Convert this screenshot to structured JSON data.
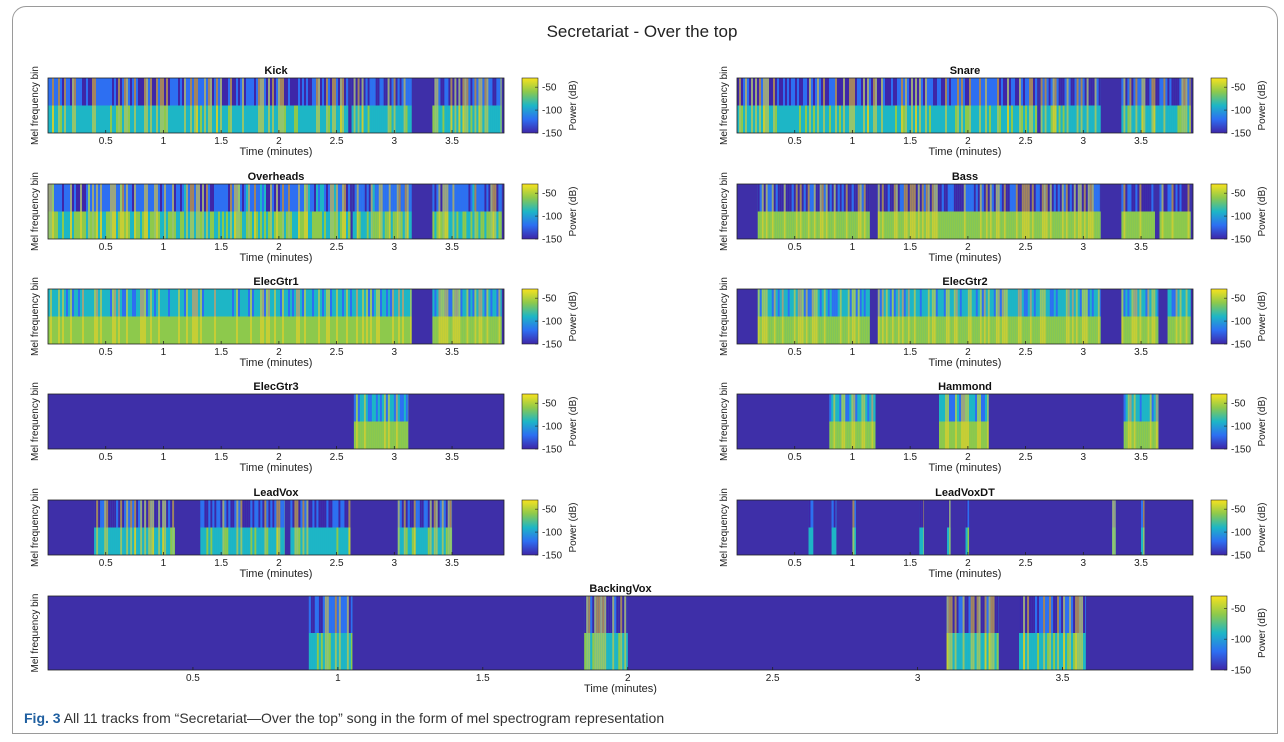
{
  "figure": {
    "title": "Secretariat - Over the top",
    "caption_number": "Fig. 3",
    "caption_text": "All 11 tracks from “Secretariat—Over the top” song in the form of mel spectrogram representation"
  },
  "colors": {
    "silence": "#3e2fa8",
    "mid": "#27a8c9",
    "high": "#f5d223",
    "colormap": [
      "#3e26a8",
      "#2d6ff2",
      "#1db6c6",
      "#8dc94c",
      "#f8e21e"
    ]
  },
  "chart_data": [
    {
      "type": "heatmap",
      "title": "Kick",
      "xlabel": "Time (minutes)",
      "ylabel": "Mel frequency bin",
      "xlim": [
        0,
        3.95
      ],
      "xticks": [
        "0.5",
        "1",
        "1.5",
        "2",
        "2.5",
        "3",
        "3.5"
      ],
      "colorbar": {
        "label": "Power (dB)",
        "range": [
          -150,
          -30
        ],
        "ticks": [
          "-50",
          "-100",
          "-150"
        ]
      },
      "active_segments": [
        [
          0,
          2.6
        ],
        [
          2.63,
          3.15
        ],
        [
          3.33,
          3.93
        ]
      ],
      "intensity": "mid"
    },
    {
      "type": "heatmap",
      "title": "Snare",
      "xlabel": "Time (minutes)",
      "ylabel": "Mel frequency bin",
      "xlim": [
        0,
        3.95
      ],
      "xticks": [
        "0.5",
        "1",
        "1.5",
        "2",
        "2.5",
        "3",
        "3.5"
      ],
      "colorbar": {
        "label": "Power (dB)",
        "range": [
          -150,
          -30
        ],
        "ticks": [
          "-50",
          "-100",
          "-150"
        ]
      },
      "active_segments": [
        [
          0,
          2.6
        ],
        [
          2.63,
          3.15
        ],
        [
          3.33,
          3.93
        ]
      ],
      "intensity": "mid"
    },
    {
      "type": "heatmap",
      "title": "Overheads",
      "xlabel": "Time (minutes)",
      "ylabel": "Mel frequency bin",
      "xlim": [
        0,
        3.95
      ],
      "xticks": [
        "0.5",
        "1",
        "1.5",
        "2",
        "2.5",
        "3",
        "3.5"
      ],
      "colorbar": {
        "label": "Power (dB)",
        "range": [
          -150,
          -30
        ],
        "ticks": [
          "-50",
          "-100",
          "-150"
        ]
      },
      "active_segments": [
        [
          0,
          2.62
        ],
        [
          2.64,
          3.15
        ],
        [
          3.33,
          3.93
        ]
      ],
      "intensity": "mid-high"
    },
    {
      "type": "heatmap",
      "title": "Bass",
      "xlabel": "Time (minutes)",
      "ylabel": "Mel frequency bin",
      "xlim": [
        0,
        3.95
      ],
      "xticks": [
        "0.5",
        "1",
        "1.5",
        "2",
        "2.5",
        "3",
        "3.5"
      ],
      "colorbar": {
        "label": "Power (dB)",
        "range": [
          -150,
          -30
        ],
        "ticks": [
          "-50",
          "-100",
          "-150"
        ]
      },
      "active_segments": [
        [
          0.18,
          1.15
        ],
        [
          1.22,
          3.15
        ],
        [
          3.33,
          3.62
        ],
        [
          3.66,
          3.93
        ]
      ],
      "intensity": "low-heavy"
    },
    {
      "type": "heatmap",
      "title": "ElecGtr1",
      "xlabel": "Time (minutes)",
      "ylabel": "Mel frequency bin",
      "xlim": [
        0,
        3.95
      ],
      "xticks": [
        "0.5",
        "1",
        "1.5",
        "2",
        "2.5",
        "3",
        "3.5"
      ],
      "colorbar": {
        "label": "Power (dB)",
        "range": [
          -150,
          -30
        ],
        "ticks": [
          "-50",
          "-100",
          "-150"
        ]
      },
      "active_segments": [
        [
          0,
          3.15
        ],
        [
          3.33,
          3.93
        ]
      ],
      "intensity": "high"
    },
    {
      "type": "heatmap",
      "title": "ElecGtr2",
      "xlabel": "Time (minutes)",
      "ylabel": "Mel frequency bin",
      "xlim": [
        0,
        3.95
      ],
      "xticks": [
        "0.5",
        "1",
        "1.5",
        "2",
        "2.5",
        "3",
        "3.5"
      ],
      "colorbar": {
        "label": "Power (dB)",
        "range": [
          -150,
          -30
        ],
        "ticks": [
          "-50",
          "-100",
          "-150"
        ]
      },
      "active_segments": [
        [
          0.18,
          1.15
        ],
        [
          1.22,
          3.15
        ],
        [
          3.33,
          3.65
        ],
        [
          3.73,
          3.93
        ]
      ],
      "intensity": "high"
    },
    {
      "type": "heatmap",
      "title": "ElecGtr3",
      "xlabel": "Time (minutes)",
      "ylabel": "Mel frequency bin",
      "xlim": [
        0,
        3.95
      ],
      "xticks": [
        "0.5",
        "1",
        "1.5",
        "2",
        "2.5",
        "3",
        "3.5"
      ],
      "colorbar": {
        "label": "Power (dB)",
        "range": [
          -150,
          -30
        ],
        "ticks": [
          "-50",
          "-100",
          "-150"
        ]
      },
      "active_segments": [
        [
          2.65,
          3.12
        ]
      ],
      "intensity": "high"
    },
    {
      "type": "heatmap",
      "title": "Hammond",
      "xlabel": "Time (minutes)",
      "ylabel": "Mel frequency bin",
      "xlim": [
        0,
        3.95
      ],
      "xticks": [
        "0.5",
        "1",
        "1.5",
        "2",
        "2.5",
        "3",
        "3.5"
      ],
      "colorbar": {
        "label": "Power (dB)",
        "range": [
          -150,
          -30
        ],
        "ticks": [
          "-50",
          "-100",
          "-150"
        ]
      },
      "active_segments": [
        [
          0.8,
          1.2
        ],
        [
          1.75,
          2.18
        ],
        [
          3.35,
          3.65
        ]
      ],
      "intensity": "high"
    },
    {
      "type": "heatmap",
      "title": "LeadVox",
      "xlabel": "Time (minutes)",
      "ylabel": "Mel frequency bin",
      "xlim": [
        0,
        3.95
      ],
      "xticks": [
        "0.5",
        "1",
        "1.5",
        "2",
        "2.5",
        "3",
        "3.5"
      ],
      "colorbar": {
        "label": "Power (dB)",
        "range": [
          -150,
          -30
        ],
        "ticks": [
          "-50",
          "-100",
          "-150"
        ]
      },
      "active_segments": [
        [
          0.4,
          1.1
        ],
        [
          1.32,
          2.05
        ],
        [
          2.1,
          2.62
        ],
        [
          3.03,
          3.5
        ]
      ],
      "intensity": "mid"
    },
    {
      "type": "heatmap",
      "title": "LeadVoxDT",
      "xlabel": "Time (minutes)",
      "ylabel": "Mel frequency bin",
      "xlim": [
        0,
        3.95
      ],
      "xticks": [
        "0.5",
        "1",
        "1.5",
        "2",
        "2.5",
        "3",
        "3.5"
      ],
      "colorbar": {
        "label": "Power (dB)",
        "range": [
          -150,
          -30
        ],
        "ticks": [
          "-50",
          "-100",
          "-150"
        ]
      },
      "active_segments": [
        [
          0.62,
          0.66
        ],
        [
          0.82,
          0.86
        ],
        [
          1.0,
          1.03
        ],
        [
          1.58,
          1.62
        ],
        [
          1.82,
          1.85
        ],
        [
          1.98,
          2.01
        ],
        [
          3.25,
          3.28
        ],
        [
          3.5,
          3.53
        ]
      ],
      "intensity": "mid"
    },
    {
      "type": "heatmap",
      "title": "BackingVox",
      "xlabel": "Time (minutes)",
      "ylabel": "Mel frequency bin",
      "xlim": [
        0,
        3.95
      ],
      "xticks": [
        "0.5",
        "1",
        "1.5",
        "2",
        "2.5",
        "3",
        "3.5"
      ],
      "colorbar": {
        "label": "Power (dB)",
        "range": [
          -150,
          -30
        ],
        "ticks": [
          "-50",
          "-100",
          "-150"
        ]
      },
      "active_segments": [
        [
          0.9,
          1.05
        ],
        [
          1.85,
          2.0
        ],
        [
          3.1,
          3.28
        ],
        [
          3.35,
          3.58
        ]
      ],
      "intensity": "mid"
    }
  ]
}
